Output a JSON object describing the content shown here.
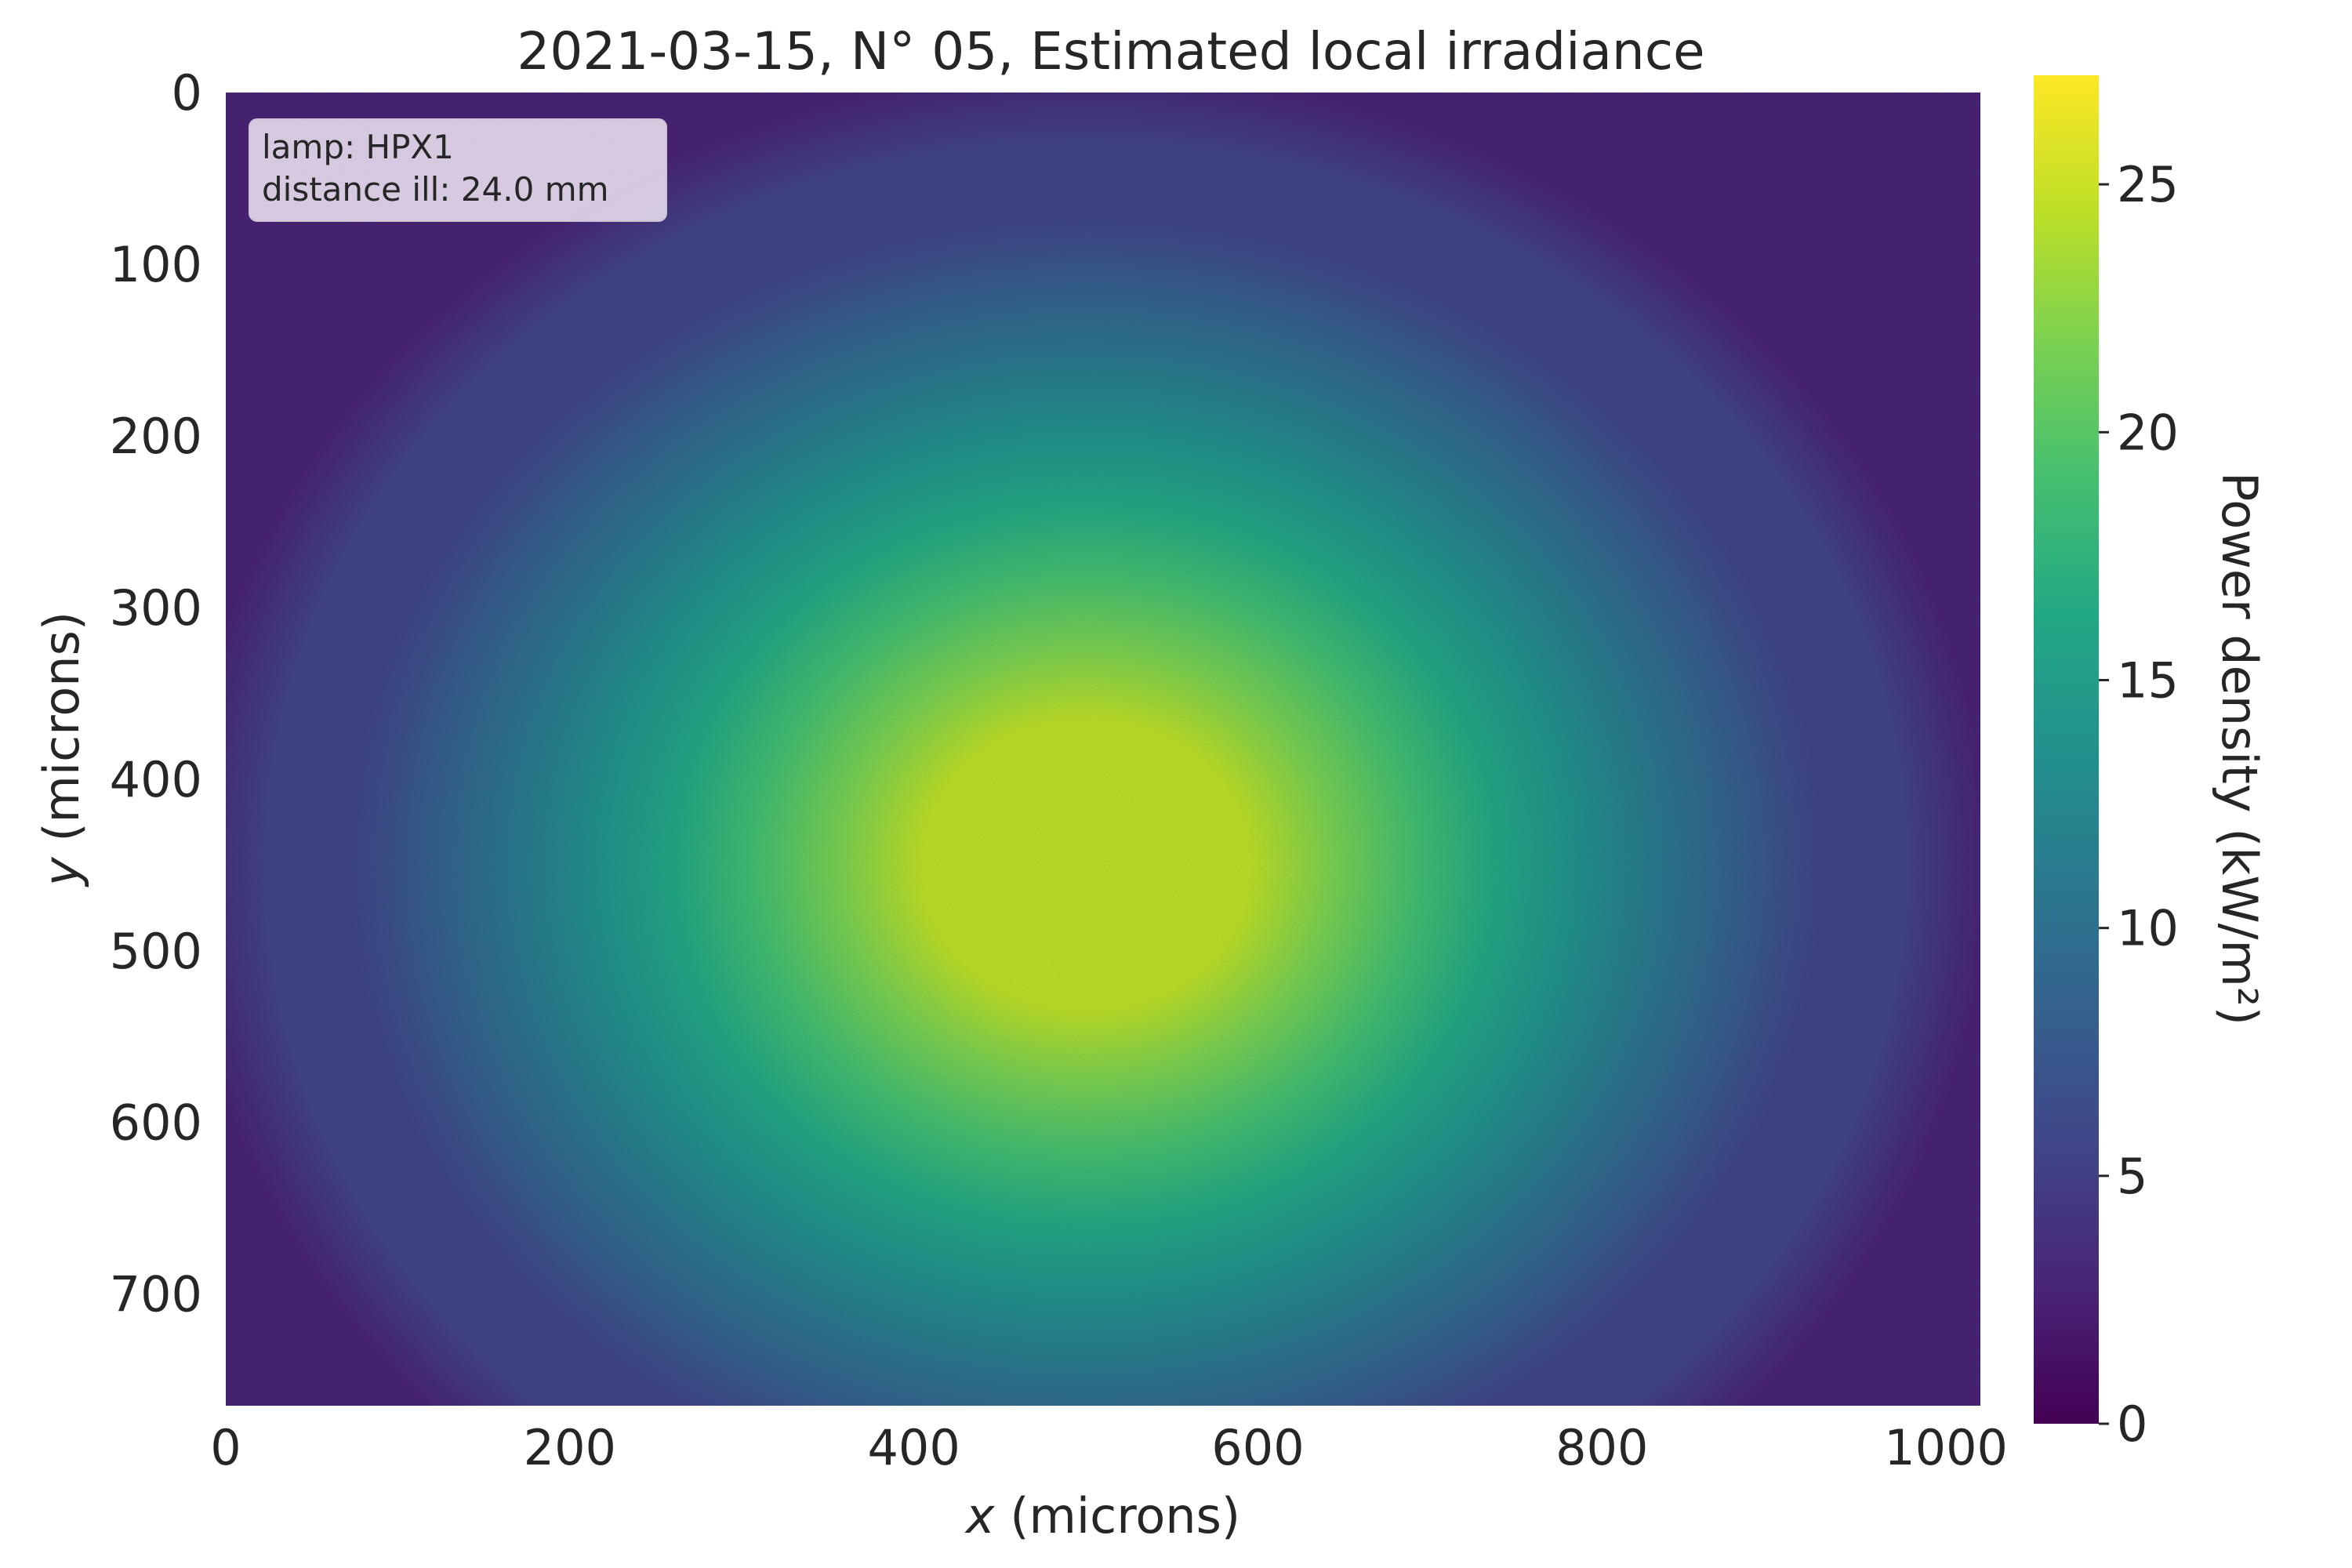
{
  "chart_data": {
    "type": "heatmap",
    "title": "2021-03-15, N° 05, Estimated local irradiance",
    "xlabel_var": "x",
    "xlabel_unit": " (microns)",
    "ylabel_var": "y",
    "ylabel_unit": " (microns)",
    "xlim": [
      0,
      1020
    ],
    "ylim": [
      0,
      765
    ],
    "y_inverted": true,
    "xticks": [
      0,
      200,
      400,
      600,
      800,
      1000
    ],
    "yticks": [
      0,
      100,
      200,
      300,
      400,
      500,
      600,
      700
    ],
    "colorbar": {
      "label": "Power density (kW/m²)",
      "range": [
        0,
        27.2
      ],
      "ticks": [
        0,
        5,
        10,
        15,
        20,
        25
      ],
      "colormap": "viridis"
    },
    "annotation": {
      "lines": [
        "lamp: HPX1",
        "distance ill: 24.0 mm"
      ],
      "location": "top-left"
    },
    "field": {
      "peak_value": 25.5,
      "edge_value": 1.0,
      "peak_center": [
        500,
        450
      ],
      "radius_x": 430,
      "radius_y": 380,
      "description_unit": "kW/m²"
    },
    "grid": false
  },
  "colors": {
    "viridis": [
      "#440154",
      "#482475",
      "#414487",
      "#355f8d",
      "#2a788e",
      "#21918c",
      "#22a884",
      "#44bf70",
      "#7ad151",
      "#bddf26",
      "#fde725"
    ],
    "annotation_bg": "#e6dcec",
    "text": "#262626"
  }
}
